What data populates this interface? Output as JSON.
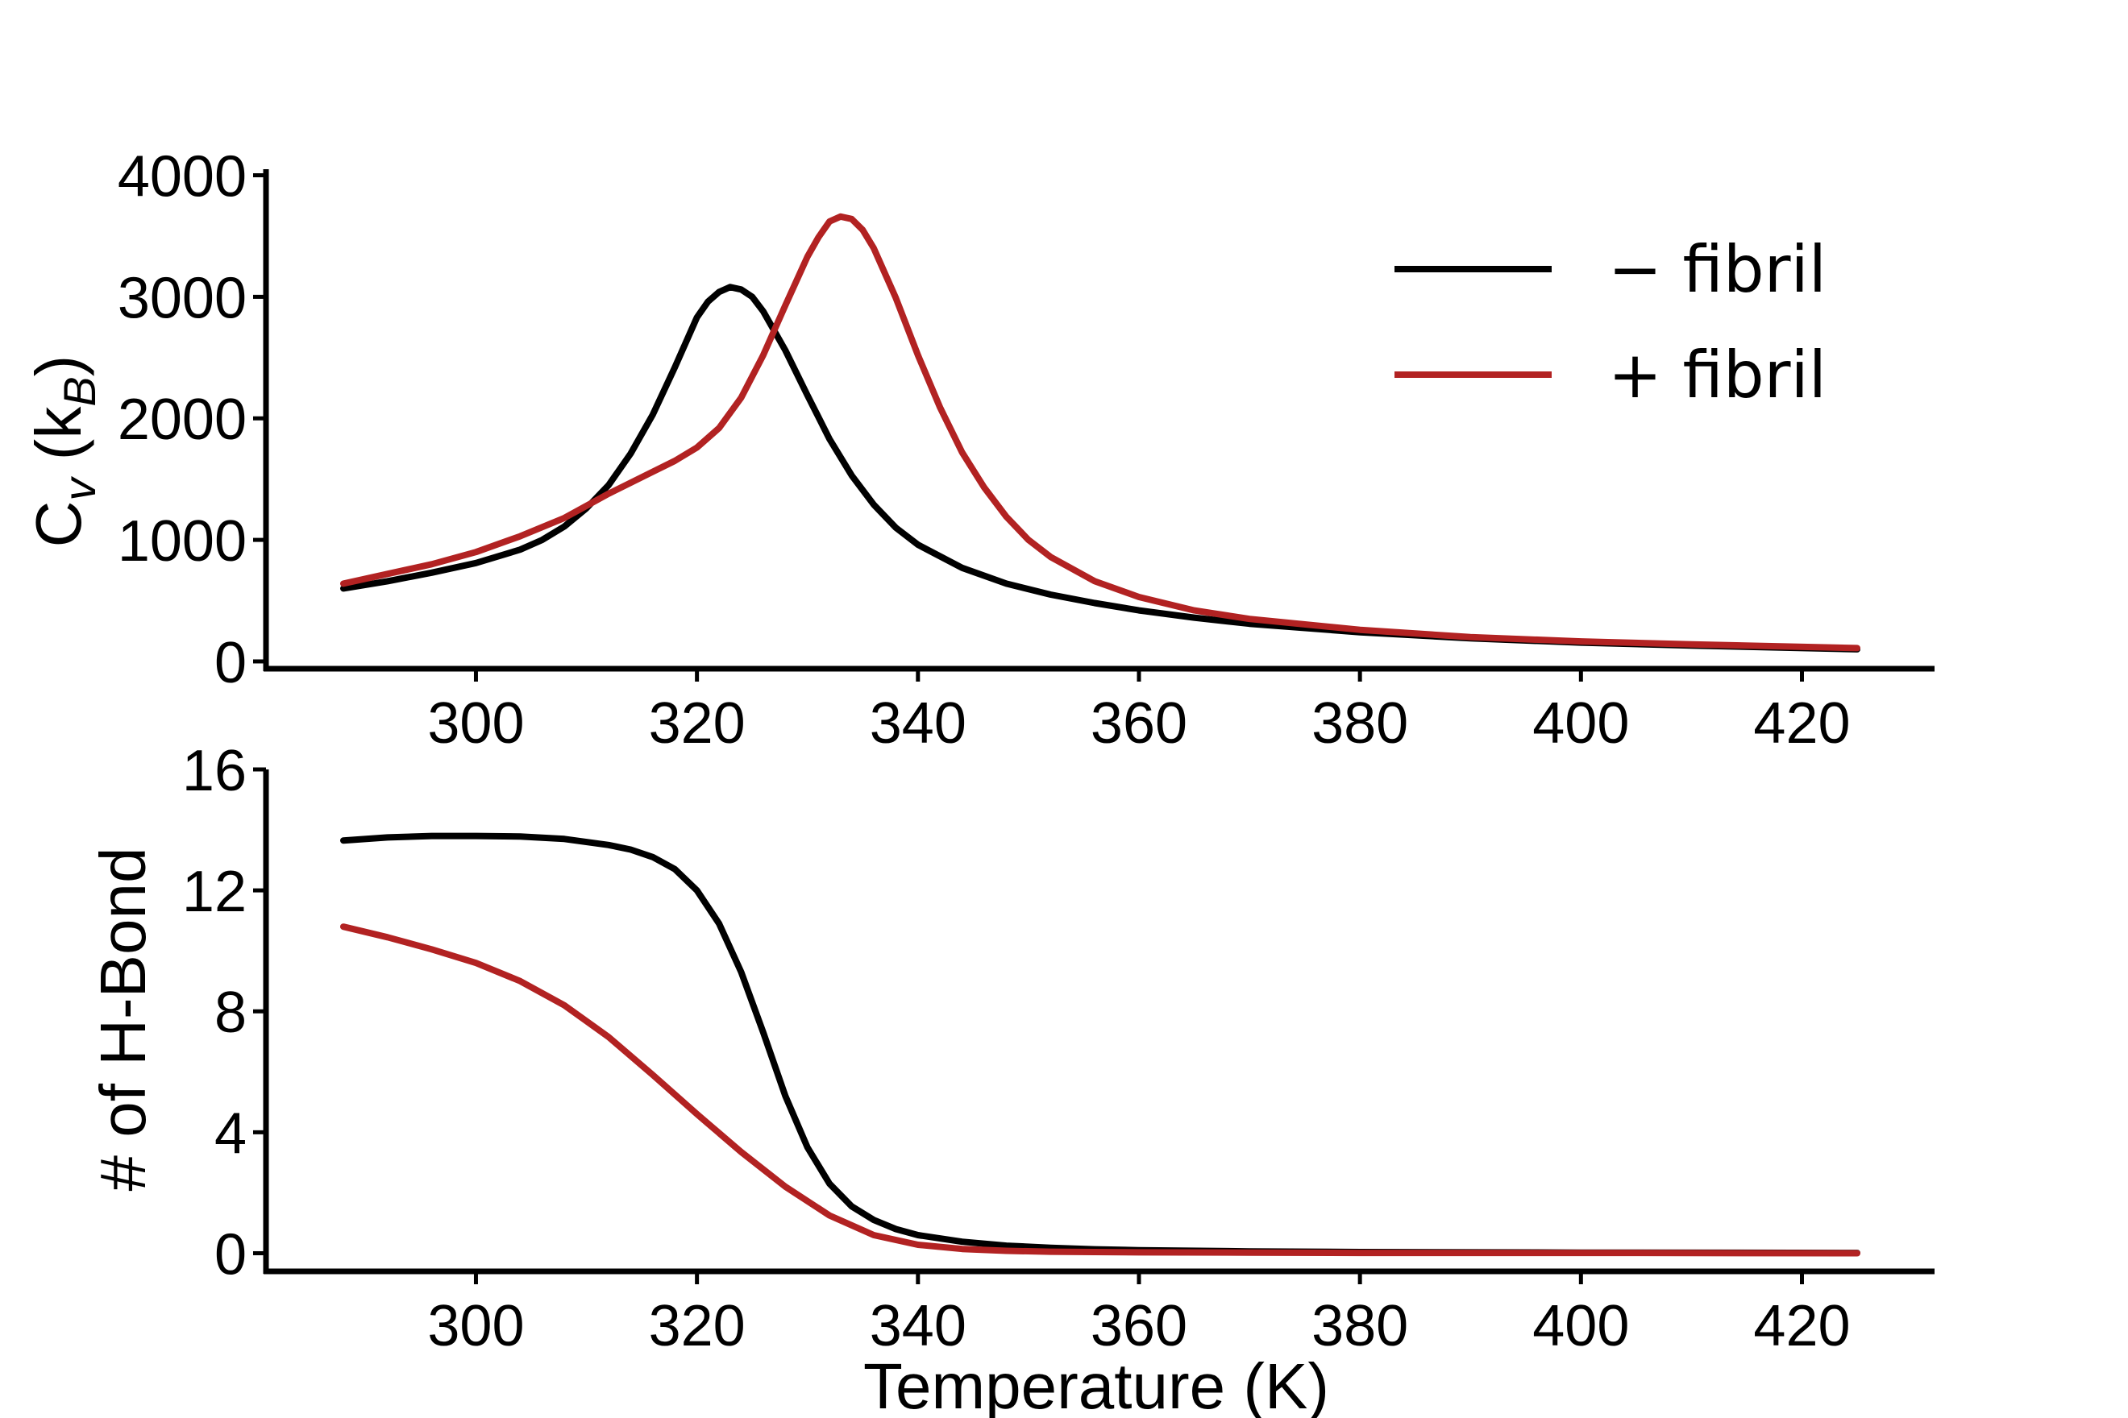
{
  "chart_data": [
    {
      "type": "line",
      "ylabel": "C_v (k_B)",
      "ylabel_parts": {
        "main": "C",
        "sub1": "v",
        "open": " (k",
        "sub2": "B",
        "close": ")"
      },
      "xlabel": "",
      "xlim": [
        281,
        432
      ],
      "ylim": [
        -60,
        4050
      ],
      "xticks": [
        300,
        320,
        340,
        360,
        380,
        400,
        420
      ],
      "yticks": [
        0,
        1000,
        2000,
        3000,
        4000
      ],
      "legend": {
        "position": "top-right"
      },
      "series": [
        {
          "name": "− fibril",
          "color": "#000000",
          "x": [
            288,
            292,
            296,
            300,
            304,
            306,
            308,
            310,
            312,
            314,
            316,
            318,
            320,
            321,
            322,
            323,
            324,
            325,
            326,
            328,
            330,
            332,
            334,
            336,
            338,
            340,
            344,
            348,
            352,
            356,
            360,
            365,
            370,
            380,
            390,
            400,
            410,
            425
          ],
          "y": [
            600,
            660,
            730,
            810,
            920,
            1000,
            1110,
            1260,
            1450,
            1710,
            2030,
            2420,
            2830,
            2960,
            3040,
            3080,
            3060,
            3000,
            2880,
            2560,
            2190,
            1830,
            1530,
            1290,
            1100,
            960,
            770,
            640,
            550,
            480,
            420,
            360,
            310,
            240,
            190,
            155,
            130,
            100
          ]
        },
        {
          "name": "+ fibril",
          "color": "#b22222",
          "x": [
            288,
            292,
            296,
            300,
            304,
            308,
            312,
            316,
            318,
            320,
            322,
            324,
            326,
            328,
            330,
            331,
            332,
            333,
            334,
            335,
            336,
            338,
            340,
            342,
            344,
            346,
            348,
            350,
            352,
            356,
            360,
            365,
            370,
            380,
            390,
            400,
            410,
            425
          ],
          "y": [
            640,
            720,
            800,
            900,
            1030,
            1180,
            1380,
            1560,
            1650,
            1760,
            1920,
            2170,
            2520,
            2930,
            3330,
            3490,
            3620,
            3660,
            3640,
            3550,
            3400,
            2990,
            2520,
            2090,
            1720,
            1430,
            1190,
            1000,
            860,
            660,
            530,
            420,
            350,
            260,
            200,
            165,
            140,
            110
          ]
        }
      ]
    },
    {
      "type": "line",
      "ylabel": "# of H-Bond",
      "xlabel": "Temperature (K)",
      "xlim": [
        281,
        432
      ],
      "ylim": [
        -0.6,
        16
      ],
      "xticks": [
        300,
        320,
        340,
        360,
        380,
        400,
        420
      ],
      "yticks": [
        0,
        4,
        8,
        12,
        16
      ],
      "series": [
        {
          "name": "− fibril",
          "color": "#000000",
          "x": [
            288,
            292,
            296,
            300,
            304,
            308,
            312,
            314,
            316,
            318,
            320,
            322,
            324,
            326,
            328,
            330,
            332,
            334,
            336,
            338,
            340,
            344,
            348,
            352,
            356,
            360,
            370,
            380,
            400,
            425
          ],
          "y": [
            13.65,
            13.75,
            13.8,
            13.8,
            13.78,
            13.7,
            13.5,
            13.35,
            13.1,
            12.7,
            12.0,
            10.9,
            9.3,
            7.3,
            5.2,
            3.5,
            2.3,
            1.55,
            1.1,
            0.8,
            0.6,
            0.38,
            0.25,
            0.18,
            0.13,
            0.1,
            0.06,
            0.04,
            0.02,
            0.01
          ]
        },
        {
          "name": "+ fibril",
          "color": "#b22222",
          "x": [
            288,
            292,
            296,
            300,
            304,
            308,
            312,
            316,
            320,
            324,
            328,
            332,
            336,
            340,
            344,
            348,
            352,
            356,
            360,
            370,
            380,
            400,
            425
          ],
          "y": [
            10.8,
            10.45,
            10.05,
            9.6,
            9.0,
            8.2,
            7.15,
            5.9,
            4.6,
            3.35,
            2.2,
            1.25,
            0.6,
            0.28,
            0.14,
            0.08,
            0.05,
            0.04,
            0.03,
            0.02,
            0.01,
            0.01,
            0.0
          ]
        }
      ]
    }
  ]
}
